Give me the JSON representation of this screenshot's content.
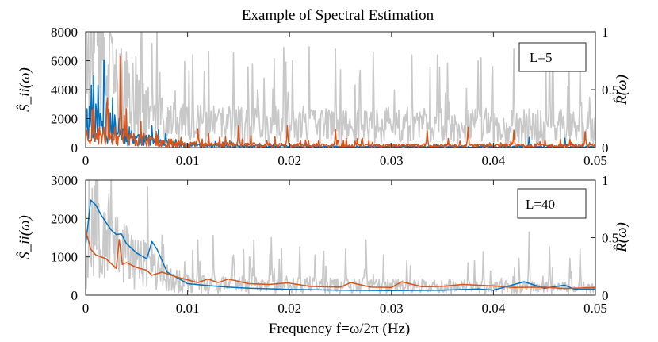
{
  "chart_data": [
    {
      "type": "line",
      "title": "Example of Spectral Estimation",
      "legend_text": "L=5",
      "legend_position": "top-right",
      "ylabel_left": "Ŝ_ii(ω)",
      "ylabel_right": "R̂(ω)",
      "xlim": [
        0,
        0.05
      ],
      "ylim_left": [
        0,
        8000
      ],
      "ylim_right": [
        0,
        1
      ],
      "xticks": [
        "0",
        "0.01",
        "0.02",
        "0.03",
        "0.04",
        "0.05"
      ],
      "yticks_left": [
        "0",
        "2000",
        "4000",
        "6000",
        "8000"
      ],
      "yticks_right": [
        "0",
        "0.5",
        "1"
      ],
      "colors": {
        "blue": "#0072BD",
        "orange": "#D95319",
        "gray": "#C8C8C8"
      },
      "series": [
        {
          "name": "blue",
          "axis": "left",
          "style": "noisy",
          "seed": 11,
          "knots": [
            [
              0,
              2000
            ],
            [
              0.002,
              1500
            ],
            [
              0.004,
              900
            ],
            [
              0.006,
              450
            ],
            [
              0.008,
              250
            ],
            [
              0.01,
              150
            ],
            [
              0.015,
              90
            ],
            [
              0.02,
              70
            ],
            [
              0.03,
              60
            ],
            [
              0.04,
              60
            ],
            [
              0.05,
              60
            ]
          ],
          "spikes": [
            [
              0.0006,
              4300
            ],
            [
              0.0012,
              3100
            ],
            [
              0.0024,
              2400
            ],
            [
              0.0033,
              2000
            ],
            [
              0.0065,
              1500
            ],
            [
              0.0435,
              700
            ],
            [
              0.047,
              650
            ]
          ]
        },
        {
          "name": "orange",
          "axis": "left",
          "style": "noisy",
          "seed": 23,
          "knots": [
            [
              0,
              900
            ],
            [
              0.003,
              750
            ],
            [
              0.006,
              450
            ],
            [
              0.01,
              250
            ],
            [
              0.02,
              160
            ],
            [
              0.03,
              140
            ],
            [
              0.05,
              140
            ]
          ],
          "spikes": [
            [
              0.0008,
              2700
            ],
            [
              0.0034,
              6300
            ],
            [
              0.0057,
              1000
            ],
            [
              0.011,
              1300
            ],
            [
              0.015,
              1500
            ],
            [
              0.0198,
              1500
            ],
            [
              0.0245,
              1250
            ],
            [
              0.0335,
              1150
            ],
            [
              0.0375,
              1400
            ],
            [
              0.042,
              1200
            ],
            [
              0.049,
              1100
            ]
          ]
        },
        {
          "name": "gray",
          "axis": "right",
          "style": "noisy",
          "seed": 37,
          "knots": [
            [
              0,
              0.75
            ],
            [
              0.002,
              0.6
            ],
            [
              0.004,
              0.45
            ],
            [
              0.006,
              0.3
            ],
            [
              0.008,
              0.22
            ],
            [
              0.01,
              0.2
            ],
            [
              0.05,
              0.18
            ]
          ],
          "spikes": [
            [
              0.0012,
              0.92
            ],
            [
              0.0035,
              0.85
            ],
            [
              0.0065,
              0.9
            ],
            [
              0.0105,
              0.8
            ],
            [
              0.0145,
              0.82
            ],
            [
              0.0175,
              0.6
            ],
            [
              0.0203,
              0.75
            ],
            [
              0.0245,
              0.85
            ],
            [
              0.0282,
              0.82
            ],
            [
              0.032,
              0.8
            ],
            [
              0.0345,
              0.8
            ],
            [
              0.0385,
              0.75
            ],
            [
              0.042,
              0.85
            ],
            [
              0.0455,
              0.87
            ],
            [
              0.0485,
              0.8
            ]
          ]
        }
      ]
    },
    {
      "type": "line",
      "legend_text": "L=40",
      "legend_position": "top-right",
      "ylabel_left": "Ŝ_ii(ω)",
      "ylabel_right": "R̂(ω)",
      "xlabel": "Frequency f=ω/2π   (Hz)",
      "xlim": [
        0,
        0.05
      ],
      "ylim_left": [
        0,
        3000
      ],
      "ylim_right": [
        0,
        1
      ],
      "xticks": [
        "0",
        "0.01",
        "0.02",
        "0.03",
        "0.04",
        "0.05"
      ],
      "yticks_left": [
        "0",
        "1000",
        "2000",
        "3000"
      ],
      "yticks_right": [
        "0",
        "0.5",
        "1"
      ],
      "colors": {
        "blue": "#0072BD",
        "orange": "#D95319",
        "gray": "#C8C8C8"
      },
      "series": [
        {
          "name": "blue",
          "axis": "left",
          "style": "smooth",
          "points": [
            [
              0,
              1300
            ],
            [
              0.0005,
              2480
            ],
            [
              0.001,
              2350
            ],
            [
              0.0015,
              2100
            ],
            [
              0.002,
              1900
            ],
            [
              0.0025,
              1700
            ],
            [
              0.003,
              1580
            ],
            [
              0.0035,
              1600
            ],
            [
              0.004,
              1350
            ],
            [
              0.005,
              1100
            ],
            [
              0.006,
              950
            ],
            [
              0.0065,
              1400
            ],
            [
              0.007,
              1200
            ],
            [
              0.008,
              600
            ],
            [
              0.01,
              300
            ],
            [
              0.012,
              250
            ],
            [
              0.014,
              210
            ],
            [
              0.016,
              180
            ],
            [
              0.02,
              150
            ],
            [
              0.025,
              130
            ],
            [
              0.03,
              120
            ],
            [
              0.035,
              130
            ],
            [
              0.0385,
              160
            ],
            [
              0.04,
              130
            ],
            [
              0.043,
              350
            ],
            [
              0.045,
              180
            ],
            [
              0.047,
              260
            ],
            [
              0.048,
              150
            ],
            [
              0.05,
              160
            ]
          ]
        },
        {
          "name": "orange",
          "axis": "left",
          "style": "smooth",
          "points": [
            [
              0,
              1700
            ],
            [
              0.0005,
              1200
            ],
            [
              0.001,
              1050
            ],
            [
              0.002,
              950
            ],
            [
              0.003,
              700
            ],
            [
              0.0033,
              1450
            ],
            [
              0.0036,
              800
            ],
            [
              0.004,
              850
            ],
            [
              0.005,
              720
            ],
            [
              0.006,
              650
            ],
            [
              0.0065,
              520
            ],
            [
              0.0075,
              600
            ],
            [
              0.009,
              470
            ],
            [
              0.01,
              400
            ],
            [
              0.011,
              330
            ],
            [
              0.012,
              420
            ],
            [
              0.013,
              330
            ],
            [
              0.014,
              420
            ],
            [
              0.016,
              300
            ],
            [
              0.018,
              280
            ],
            [
              0.0198,
              320
            ],
            [
              0.022,
              230
            ],
            [
              0.025,
              210
            ],
            [
              0.026,
              330
            ],
            [
              0.028,
              210
            ],
            [
              0.03,
              200
            ],
            [
              0.031,
              350
            ],
            [
              0.033,
              220
            ],
            [
              0.035,
              230
            ],
            [
              0.037,
              280
            ],
            [
              0.04,
              240
            ],
            [
              0.042,
              200
            ],
            [
              0.045,
              210
            ],
            [
              0.047,
              170
            ],
            [
              0.05,
              200
            ]
          ]
        },
        {
          "name": "gray",
          "axis": "right",
          "style": "noisy",
          "seed": 53,
          "knots": [
            [
              0,
              0.1
            ],
            [
              0.0006,
              0.75
            ],
            [
              0.002,
              0.62
            ],
            [
              0.003,
              0.5
            ],
            [
              0.004,
              0.35
            ],
            [
              0.006,
              0.25
            ],
            [
              0.008,
              0.15
            ],
            [
              0.01,
              0.1
            ],
            [
              0.05,
              0.06
            ]
          ],
          "spikes": [
            [
              0.0012,
              0.72
            ],
            [
              0.0028,
              0.52
            ],
            [
              0.004,
              0.6
            ],
            [
              0.0065,
              0.45
            ],
            [
              0.011,
              0.48
            ],
            [
              0.0125,
              0.52
            ],
            [
              0.0145,
              0.35
            ],
            [
              0.0165,
              0.48
            ],
            [
              0.0182,
              0.5
            ],
            [
              0.021,
              0.42
            ],
            [
              0.0225,
              0.35
            ],
            [
              0.0255,
              0.4
            ],
            [
              0.0275,
              0.48
            ],
            [
              0.0315,
              0.3
            ],
            [
              0.0375,
              0.28
            ],
            [
              0.039,
              0.38
            ],
            [
              0.0425,
              0.32
            ],
            [
              0.0435,
              0.55
            ],
            [
              0.0455,
              0.42
            ],
            [
              0.0475,
              0.32
            ],
            [
              0.0485,
              0.4
            ]
          ]
        }
      ]
    }
  ]
}
